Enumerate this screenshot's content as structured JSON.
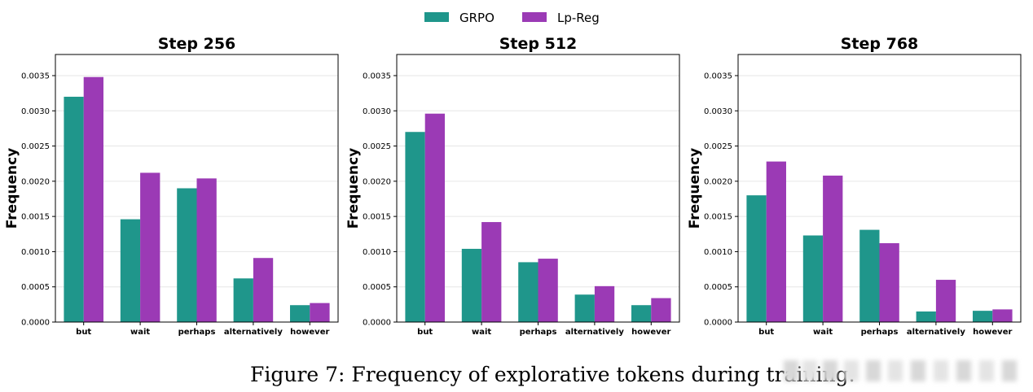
{
  "legend": {
    "placement": "top-center",
    "entries": [
      {
        "name": "GRPO",
        "color": "#1f968b"
      },
      {
        "name": "Lp-Reg",
        "color": "#9b3ab5"
      }
    ]
  },
  "caption": "Figure 7: Frequency of explorative tokens during training.",
  "chart_data": [
    {
      "type": "bar",
      "title": "Step 256",
      "ylabel": "Frequency",
      "xlabel": "",
      "categories": [
        "but",
        "wait",
        "perhaps",
        "alternatively",
        "however"
      ],
      "ylim": [
        0,
        0.0038
      ],
      "yticks": [
        "0.0000",
        "0.0005",
        "0.0010",
        "0.0015",
        "0.0020",
        "0.0025",
        "0.0030",
        "0.0035"
      ],
      "grid": true,
      "series": [
        {
          "name": "GRPO",
          "color": "#1f968b",
          "values": [
            0.0032,
            0.00146,
            0.0019,
            0.00062,
            0.00024
          ]
        },
        {
          "name": "Lp-Reg",
          "color": "#9b3ab5",
          "values": [
            0.00348,
            0.00212,
            0.00204,
            0.00091,
            0.00027
          ]
        }
      ]
    },
    {
      "type": "bar",
      "title": "Step 512",
      "ylabel": "Frequency",
      "xlabel": "",
      "categories": [
        "but",
        "wait",
        "perhaps",
        "alternatively",
        "however"
      ],
      "ylim": [
        0,
        0.0038
      ],
      "yticks": [
        "0.0000",
        "0.0005",
        "0.0010",
        "0.0015",
        "0.0020",
        "0.0025",
        "0.0030",
        "0.0035"
      ],
      "grid": true,
      "series": [
        {
          "name": "GRPO",
          "color": "#1f968b",
          "values": [
            0.0027,
            0.00104,
            0.00085,
            0.00039,
            0.00024
          ]
        },
        {
          "name": "Lp-Reg",
          "color": "#9b3ab5",
          "values": [
            0.00296,
            0.00142,
            0.0009,
            0.00051,
            0.00034
          ]
        }
      ]
    },
    {
      "type": "bar",
      "title": "Step 768",
      "ylabel": "Frequency",
      "xlabel": "",
      "categories": [
        "but",
        "wait",
        "perhaps",
        "alternatively",
        "however"
      ],
      "ylim": [
        0,
        0.0038
      ],
      "yticks": [
        "0.0000",
        "0.0005",
        "0.0010",
        "0.0015",
        "0.0020",
        "0.0025",
        "0.0030",
        "0.0035"
      ],
      "grid": true,
      "series": [
        {
          "name": "GRPO",
          "color": "#1f968b",
          "values": [
            0.0018,
            0.00123,
            0.00131,
            0.00015,
            0.00016
          ]
        },
        {
          "name": "Lp-Reg",
          "color": "#9b3ab5",
          "values": [
            0.00228,
            0.00208,
            0.00112,
            0.0006,
            0.00018
          ]
        }
      ]
    }
  ]
}
